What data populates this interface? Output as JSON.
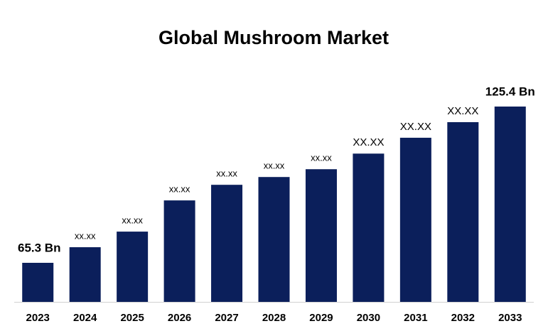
{
  "chart_data": {
    "type": "bar",
    "title": "Global Mushroom Market",
    "categories": [
      "2023",
      "2024",
      "2025",
      "2026",
      "2027",
      "2028",
      "2029",
      "2030",
      "2031",
      "2032",
      "2033"
    ],
    "values": [
      65.3,
      71.3,
      77.3,
      89.3,
      95.3,
      98.3,
      101.3,
      107.3,
      113.4,
      119.4,
      125.4
    ],
    "value_labels": [
      "65.3 Bn",
      "xx.xx",
      "xx.xx",
      "xx.xx",
      "xx.xx",
      "xx.xx",
      "xx.xx",
      "XX.XX",
      "XX.XX",
      "XX.XX",
      "125.4 Bn"
    ],
    "color": "#0b1f5b"
  }
}
